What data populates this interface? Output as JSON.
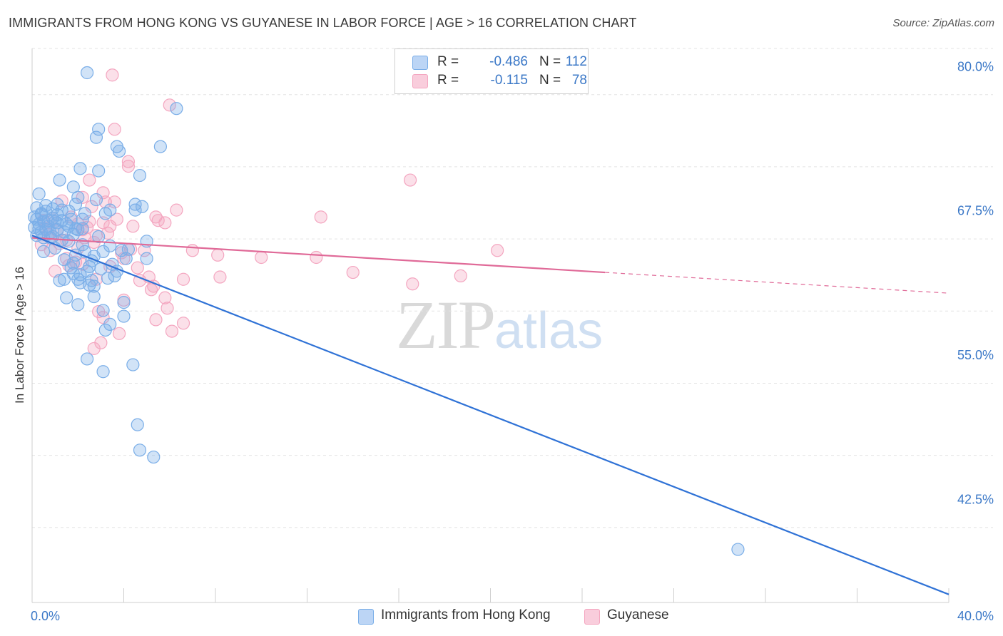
{
  "title": "IMMIGRANTS FROM HONG KONG VS GUYANESE IN LABOR FORCE | AGE > 16 CORRELATION CHART",
  "source": "Source: ZipAtlas.com",
  "watermark": {
    "zip": "ZIP",
    "atlas": "atlas"
  },
  "legend": {
    "rows": [
      {
        "r_label": "R =",
        "r_value": "-0.486",
        "n_label": "N =",
        "n_value": "112"
      },
      {
        "r_label": "R =",
        "r_value": "-0.115",
        "n_label": "N =",
        "n_value": "78"
      }
    ]
  },
  "bottom_legend": [
    "Immigrants from Hong Kong",
    "Guyanese"
  ],
  "chart_data": {
    "type": "scatter",
    "title": "IMMIGRANTS FROM HONG KONG VS GUYANESE IN LABOR FORCE | AGE > 16 CORRELATION CHART",
    "xlabel": "",
    "ylabel": "In Labor Force | Age > 16",
    "xlim": [
      0,
      40
    ],
    "ylim": [
      33.5,
      81.5
    ],
    "x_tick_labels": [
      "0.0%",
      "40.0%"
    ],
    "y_ticks": [
      42.5,
      55.0,
      67.5,
      80.0
    ],
    "y_tick_labels": [
      "42.5%",
      "55.0%",
      "67.5%",
      "80.0%"
    ],
    "grid": true,
    "colors": {
      "blue": "#7aaee8",
      "blue_line": "#2f72d6",
      "pink": "#f4a6c0",
      "pink_line": "#e06a98",
      "tick_text": "#3b78c7"
    },
    "series": [
      {
        "name": "Immigrants from Hong Kong",
        "color": "#7aaee8",
        "trend": {
          "x": [
            0,
            40
          ],
          "y": [
            65.3,
            34.2
          ]
        },
        "points": [
          [
            2.4,
            79.4
          ],
          [
            6.3,
            76.3
          ],
          [
            2.9,
            74.5
          ],
          [
            2.8,
            73.8
          ],
          [
            3.7,
            73.0
          ],
          [
            5.6,
            73.0
          ],
          [
            3.8,
            72.6
          ],
          [
            2.1,
            71.1
          ],
          [
            2.9,
            70.9
          ],
          [
            4.7,
            70.5
          ],
          [
            1.2,
            70.1
          ],
          [
            1.8,
            69.5
          ],
          [
            0.3,
            68.9
          ],
          [
            2.0,
            68.6
          ],
          [
            1.9,
            68.0
          ],
          [
            2.8,
            68.4
          ],
          [
            4.5,
            68.0
          ],
          [
            4.8,
            67.8
          ],
          [
            1.1,
            68.0
          ],
          [
            0.9,
            67.6
          ],
          [
            0.2,
            67.7
          ],
          [
            0.4,
            67.2
          ],
          [
            0.6,
            67.4
          ],
          [
            1.1,
            67.1
          ],
          [
            1.3,
            67.5
          ],
          [
            1.6,
            67.4
          ],
          [
            2.3,
            67.2
          ],
          [
            2.2,
            66.7
          ],
          [
            3.2,
            67.2
          ],
          [
            3.4,
            67.5
          ],
          [
            4.5,
            67.5
          ],
          [
            0.1,
            66.9
          ],
          [
            0.2,
            66.7
          ],
          [
            0.3,
            66.3
          ],
          [
            0.5,
            66.5
          ],
          [
            0.7,
            66.6
          ],
          [
            0.9,
            66.8
          ],
          [
            1.0,
            66.5
          ],
          [
            1.3,
            66.6
          ],
          [
            1.5,
            66.3
          ],
          [
            1.7,
            66.7
          ],
          [
            0.1,
            66.0
          ],
          [
            0.3,
            65.9
          ],
          [
            0.4,
            65.6
          ],
          [
            0.6,
            65.8
          ],
          [
            0.8,
            65.5
          ],
          [
            1.1,
            65.8
          ],
          [
            1.4,
            65.6
          ],
          [
            1.8,
            65.4
          ],
          [
            2.0,
            65.8
          ],
          [
            2.2,
            65.9
          ],
          [
            0.2,
            65.3
          ],
          [
            0.5,
            65.1
          ],
          [
            0.9,
            65.2
          ],
          [
            1.3,
            64.9
          ],
          [
            1.6,
            64.8
          ],
          [
            2.2,
            64.5
          ],
          [
            5.0,
            64.8
          ],
          [
            3.4,
            64.4
          ],
          [
            3.1,
            63.9
          ],
          [
            3.9,
            64.0
          ],
          [
            0.5,
            63.9
          ],
          [
            1.0,
            64.2
          ],
          [
            1.9,
            63.6
          ],
          [
            2.3,
            63.9
          ],
          [
            2.7,
            63.5
          ],
          [
            4.1,
            63.3
          ],
          [
            5.0,
            63.3
          ],
          [
            1.8,
            62.9
          ],
          [
            1.7,
            62.5
          ],
          [
            2.5,
            62.6
          ],
          [
            3.5,
            62.8
          ],
          [
            1.8,
            62.0
          ],
          [
            2.1,
            61.9
          ],
          [
            2.4,
            62.2
          ],
          [
            3.6,
            61.8
          ],
          [
            2.6,
            61.4
          ],
          [
            1.2,
            61.4
          ],
          [
            1.4,
            61.5
          ],
          [
            2.0,
            61.5
          ],
          [
            2.5,
            61.0
          ],
          [
            2.7,
            60.9
          ],
          [
            3.3,
            61.6
          ],
          [
            1.5,
            59.9
          ],
          [
            2.7,
            60.0
          ],
          [
            4.0,
            59.5
          ],
          [
            2.0,
            59.3
          ],
          [
            3.1,
            58.8
          ],
          [
            4.0,
            58.3
          ],
          [
            3.4,
            57.6
          ],
          [
            3.2,
            57.1
          ],
          [
            2.4,
            54.6
          ],
          [
            4.4,
            54.1
          ],
          [
            3.1,
            53.5
          ],
          [
            4.6,
            48.9
          ],
          [
            4.7,
            46.7
          ],
          [
            5.3,
            46.1
          ],
          [
            30.8,
            38.1
          ],
          [
            0.7,
            66.1
          ],
          [
            1.1,
            66.4
          ],
          [
            0.4,
            67.1
          ],
          [
            1.6,
            66.1
          ],
          [
            2.9,
            65.2
          ],
          [
            1.9,
            65.9
          ],
          [
            0.8,
            65.1
          ],
          [
            2.6,
            63.1
          ],
          [
            3.0,
            62.4
          ],
          [
            4.2,
            64.1
          ],
          [
            2.1,
            61.2
          ],
          [
            3.7,
            62.2
          ],
          [
            1.4,
            63.2
          ],
          [
            0.6,
            67.9
          ]
        ]
      },
      {
        "name": "Guyanese",
        "color": "#f4a6c0",
        "trend": {
          "x": [
            0,
            25
          ],
          "y": [
            65.1,
            62.1
          ]
        },
        "trend_dashed": {
          "x": [
            25,
            40
          ],
          "y": [
            62.1,
            60.3
          ]
        },
        "points": [
          [
            3.5,
            79.2
          ],
          [
            6.0,
            76.6
          ],
          [
            3.6,
            74.5
          ],
          [
            4.2,
            71.7
          ],
          [
            4.2,
            71.3
          ],
          [
            2.5,
            70.1
          ],
          [
            16.5,
            70.1
          ],
          [
            3.1,
            69.0
          ],
          [
            2.2,
            68.6
          ],
          [
            3.2,
            68.2
          ],
          [
            3.6,
            68.2
          ],
          [
            1.3,
            68.3
          ],
          [
            6.3,
            67.5
          ],
          [
            12.6,
            66.9
          ],
          [
            5.4,
            66.9
          ],
          [
            2.5,
            66.5
          ],
          [
            3.1,
            66.4
          ],
          [
            5.8,
            66.4
          ],
          [
            2.0,
            66.3
          ],
          [
            4.4,
            66.1
          ],
          [
            3.4,
            66.1
          ],
          [
            2.2,
            65.8
          ],
          [
            1.1,
            65.7
          ],
          [
            0.7,
            65.4
          ],
          [
            2.8,
            65.3
          ],
          [
            2.3,
            65.1
          ],
          [
            1.5,
            64.9
          ],
          [
            2.7,
            64.7
          ],
          [
            0.4,
            64.5
          ],
          [
            0.8,
            64.0
          ],
          [
            4.3,
            64.1
          ],
          [
            7.0,
            64.0
          ],
          [
            20.3,
            64.0
          ],
          [
            8.1,
            63.6
          ],
          [
            10.0,
            63.4
          ],
          [
            12.4,
            63.4
          ],
          [
            1.5,
            63.3
          ],
          [
            4.0,
            63.3
          ],
          [
            1.9,
            63.0
          ],
          [
            2.2,
            62.8
          ],
          [
            3.4,
            62.6
          ],
          [
            1.0,
            62.2
          ],
          [
            5.1,
            61.7
          ],
          [
            14.0,
            62.1
          ],
          [
            8.2,
            61.7
          ],
          [
            18.7,
            61.8
          ],
          [
            4.7,
            61.4
          ],
          [
            6.6,
            61.5
          ],
          [
            2.8,
            61.5
          ],
          [
            16.6,
            61.1
          ],
          [
            5.3,
            60.9
          ],
          [
            5.2,
            60.6
          ],
          [
            5.8,
            59.9
          ],
          [
            4.0,
            59.7
          ],
          [
            5.9,
            59.0
          ],
          [
            2.9,
            58.7
          ],
          [
            3.1,
            58.2
          ],
          [
            5.4,
            58.0
          ],
          [
            6.6,
            57.7
          ],
          [
            6.1,
            57.0
          ],
          [
            3.8,
            56.8
          ],
          [
            3.0,
            56.0
          ],
          [
            2.7,
            55.5
          ],
          [
            1.7,
            66.9
          ],
          [
            0.5,
            66.6
          ],
          [
            2.0,
            64.2
          ],
          [
            3.3,
            65.5
          ],
          [
            1.2,
            64.6
          ],
          [
            4.6,
            62.5
          ],
          [
            3.9,
            63.8
          ],
          [
            0.9,
            66.8
          ],
          [
            2.4,
            66.0
          ],
          [
            1.6,
            62.7
          ],
          [
            3.7,
            66.7
          ],
          [
            5.5,
            66.6
          ],
          [
            0.6,
            65.9
          ],
          [
            4.9,
            64.0
          ],
          [
            2.6,
            67.8
          ]
        ]
      }
    ]
  }
}
